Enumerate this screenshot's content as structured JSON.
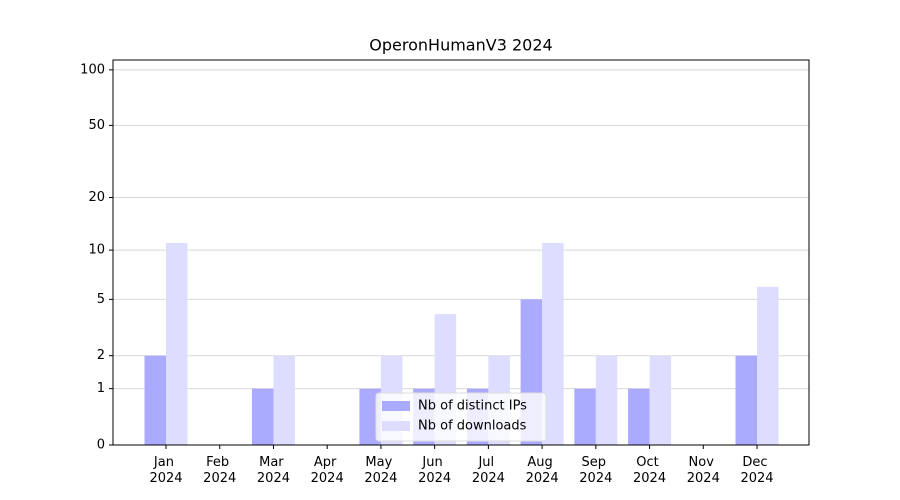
{
  "chart_data": {
    "type": "bar",
    "title": "OperonHumanV3 2024",
    "categories": [
      "Jan 2024",
      "Feb 2024",
      "Mar 2024",
      "Apr 2024",
      "May 2024",
      "Jun 2024",
      "Jul 2024",
      "Aug 2024",
      "Sep 2024",
      "Oct 2024",
      "Nov 2024",
      "Dec 2024"
    ],
    "series": [
      {
        "name": "Nb of distinct IPs",
        "color": "#aaaaff",
        "values": [
          2,
          0,
          1,
          0,
          1,
          1,
          1,
          5,
          1,
          1,
          0,
          2
        ]
      },
      {
        "name": "Nb of downloads",
        "color": "#ddddff",
        "values": [
          11,
          0,
          2,
          0,
          2,
          4,
          2,
          11,
          2,
          2,
          0,
          6
        ]
      }
    ],
    "yscale": "symlog",
    "ylim": [
      0,
      113
    ],
    "yticks": [
      0,
      1,
      2,
      5,
      10,
      20,
      50,
      100
    ],
    "grid": true,
    "legend": "lower center"
  }
}
